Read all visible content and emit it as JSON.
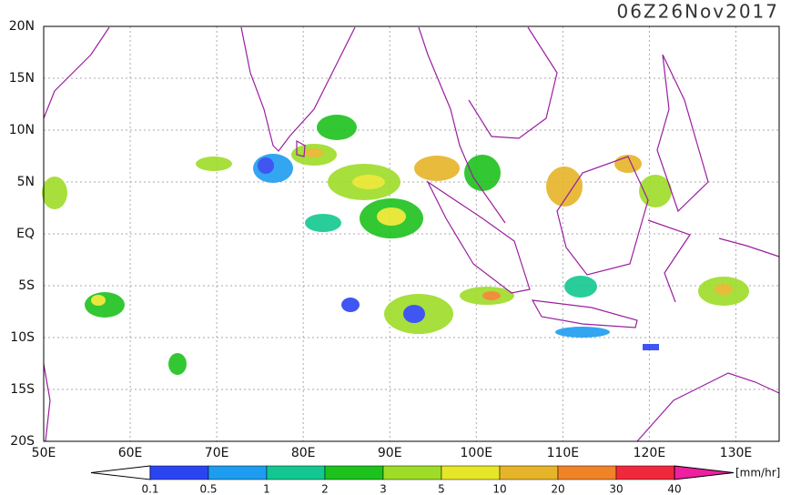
{
  "map": {
    "title": "06Z26Nov2017",
    "lon_range": [
      50,
      135
    ],
    "lat_range": [
      -20,
      20
    ],
    "lon_ticks": [
      {
        "value": 50,
        "label": "50E"
      },
      {
        "value": 60,
        "label": "60E"
      },
      {
        "value": 70,
        "label": "70E"
      },
      {
        "value": 80,
        "label": "80E"
      },
      {
        "value": 90,
        "label": "90E"
      },
      {
        "value": 100,
        "label": "100E"
      },
      {
        "value": 110,
        "label": "110E"
      },
      {
        "value": 120,
        "label": "120E"
      },
      {
        "value": 130,
        "label": "130E"
      }
    ],
    "lat_ticks": [
      {
        "value": 20,
        "label": "20N"
      },
      {
        "value": 15,
        "label": "15N"
      },
      {
        "value": 10,
        "label": "10N"
      },
      {
        "value": 5,
        "label": "5N"
      },
      {
        "value": 0,
        "label": "EQ"
      },
      {
        "value": -5,
        "label": "5S"
      },
      {
        "value": -10,
        "label": "10S"
      },
      {
        "value": -15,
        "label": "15S"
      },
      {
        "value": -20,
        "label": "20S"
      }
    ]
  },
  "colorbar": {
    "unit": "[mm/hr]",
    "levels": [
      0.1,
      0.5,
      1,
      2,
      3,
      5,
      10,
      20,
      30,
      40
    ],
    "colors": [
      "#ffffff",
      "#2b44f2",
      "#1e9cf0",
      "#12c890",
      "#1dc21d",
      "#9edc28",
      "#e6e628",
      "#e6b428",
      "#f08228",
      "#f0283c",
      "#f01ea0"
    ]
  }
}
